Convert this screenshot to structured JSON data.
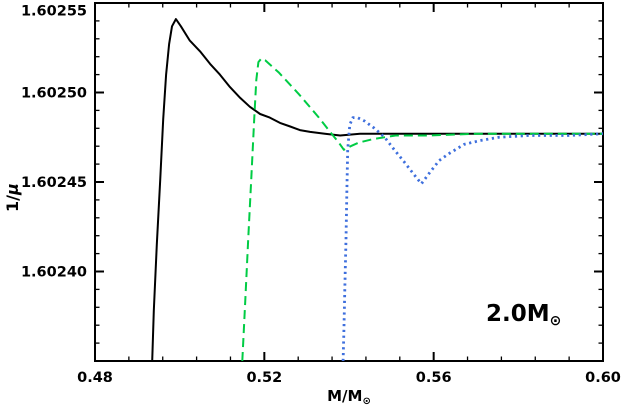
{
  "background": "#ffffff",
  "chart_data": {
    "type": "line",
    "title": "",
    "ylabel_main": "1/",
    "ylabel_mu": "μ",
    "xlabel_main": "M/M",
    "xlabel_sub": "⊙",
    "annotation_main": "2.0M",
    "annotation_sub": "⊙",
    "xlim": [
      0.48,
      0.6
    ],
    "ylim": [
      1.60235,
      1.60255
    ],
    "x_major_ticks": [
      0.48,
      0.52,
      0.56,
      0.6
    ],
    "x_tick_labels": [
      "0.48",
      "0.52",
      "0.56",
      "0.60"
    ],
    "x_minor_step": 0.008,
    "y_major_ticks": [
      1.60235,
      1.6024,
      1.60245,
      1.6025,
      1.60255
    ],
    "y_tick_labels": [
      "",
      "1.60240",
      "1.60245",
      "1.60250",
      "1.60255"
    ],
    "y_minor_step": 1e-05,
    "grid": false,
    "legend": "none",
    "frame_color": "#000000",
    "series": [
      {
        "name": "solid-black",
        "color": "#000000",
        "style": "solid",
        "width": 2,
        "points": [
          [
            0.4935,
            1.60235
          ],
          [
            0.4939,
            1.602378
          ],
          [
            0.4946,
            1.602415
          ],
          [
            0.4954,
            1.602451
          ],
          [
            0.4961,
            1.602485
          ],
          [
            0.4968,
            1.60251
          ],
          [
            0.4975,
            1.602527
          ],
          [
            0.4982,
            1.602537
          ],
          [
            0.4991,
            1.602541
          ],
          [
            0.5003,
            1.602537
          ],
          [
            0.5024,
            1.602529
          ],
          [
            0.5048,
            1.602523
          ],
          [
            0.5072,
            1.602516
          ],
          [
            0.5095,
            1.60251
          ],
          [
            0.5119,
            1.602503
          ],
          [
            0.5143,
            1.602497
          ],
          [
            0.5166,
            1.602492
          ],
          [
            0.519,
            1.602488
          ],
          [
            0.5213,
            1.602486
          ],
          [
            0.5237,
            1.602483
          ],
          [
            0.5261,
            1.602481
          ],
          [
            0.5284,
            1.602479
          ],
          [
            0.5308,
            1.602478
          ],
          [
            0.5343,
            1.602477
          ],
          [
            0.5379,
            1.602476
          ],
          [
            0.5426,
            1.602477
          ],
          [
            0.5497,
            1.602477
          ],
          [
            0.565,
            1.602477
          ],
          [
            0.6,
            1.602477
          ]
        ]
      },
      {
        "name": "dashed-green",
        "color": "#00cc44",
        "style": "dashed",
        "width": 2,
        "points": [
          [
            0.5148,
            1.60235
          ],
          [
            0.5155,
            1.602384
          ],
          [
            0.5162,
            1.602418
          ],
          [
            0.5169,
            1.602451
          ],
          [
            0.5176,
            1.602485
          ],
          [
            0.5181,
            1.602507
          ],
          [
            0.5186,
            1.602517
          ],
          [
            0.5193,
            1.602519
          ],
          [
            0.5202,
            1.602518
          ],
          [
            0.5235,
            1.602511
          ],
          [
            0.5282,
            1.602499
          ],
          [
            0.5329,
            1.602486
          ],
          [
            0.5352,
            1.602479
          ],
          [
            0.5376,
            1.602472
          ],
          [
            0.5388,
            1.602468
          ],
          [
            0.5404,
            1.60247
          ],
          [
            0.5423,
            1.602472
          ],
          [
            0.5458,
            1.602474
          ],
          [
            0.551,
            1.602476
          ],
          [
            0.5588,
            1.602476
          ],
          [
            0.5706,
            1.602477
          ],
          [
            0.6,
            1.602477
          ]
        ]
      },
      {
        "name": "dotted-blue",
        "color": "#3e6fdd",
        "style": "dotted",
        "width": 2.8,
        "points": [
          [
            0.5386,
            1.60235
          ],
          [
            0.5388,
            1.602367
          ],
          [
            0.539,
            1.60239
          ],
          [
            0.5393,
            1.602418
          ],
          [
            0.5395,
            1.602446
          ],
          [
            0.5397,
            1.602468
          ],
          [
            0.5402,
            1.602482
          ],
          [
            0.5409,
            1.602486
          ],
          [
            0.542,
            1.602486
          ],
          [
            0.5437,
            1.602484
          ],
          [
            0.546,
            1.60248
          ],
          [
            0.5484,
            1.602475
          ],
          [
            0.5507,
            1.602468
          ],
          [
            0.5531,
            1.602461
          ],
          [
            0.5554,
            1.602454
          ],
          [
            0.5571,
            1.602449
          ],
          [
            0.559,
            1.602455
          ],
          [
            0.5613,
            1.602462
          ],
          [
            0.5637,
            1.602466
          ],
          [
            0.5672,
            1.602471
          ],
          [
            0.5707,
            1.602473
          ],
          [
            0.5755,
            1.602475
          ],
          [
            0.5825,
            1.602476
          ],
          [
            0.5919,
            1.602476
          ],
          [
            0.6,
            1.602477
          ]
        ]
      }
    ]
  }
}
